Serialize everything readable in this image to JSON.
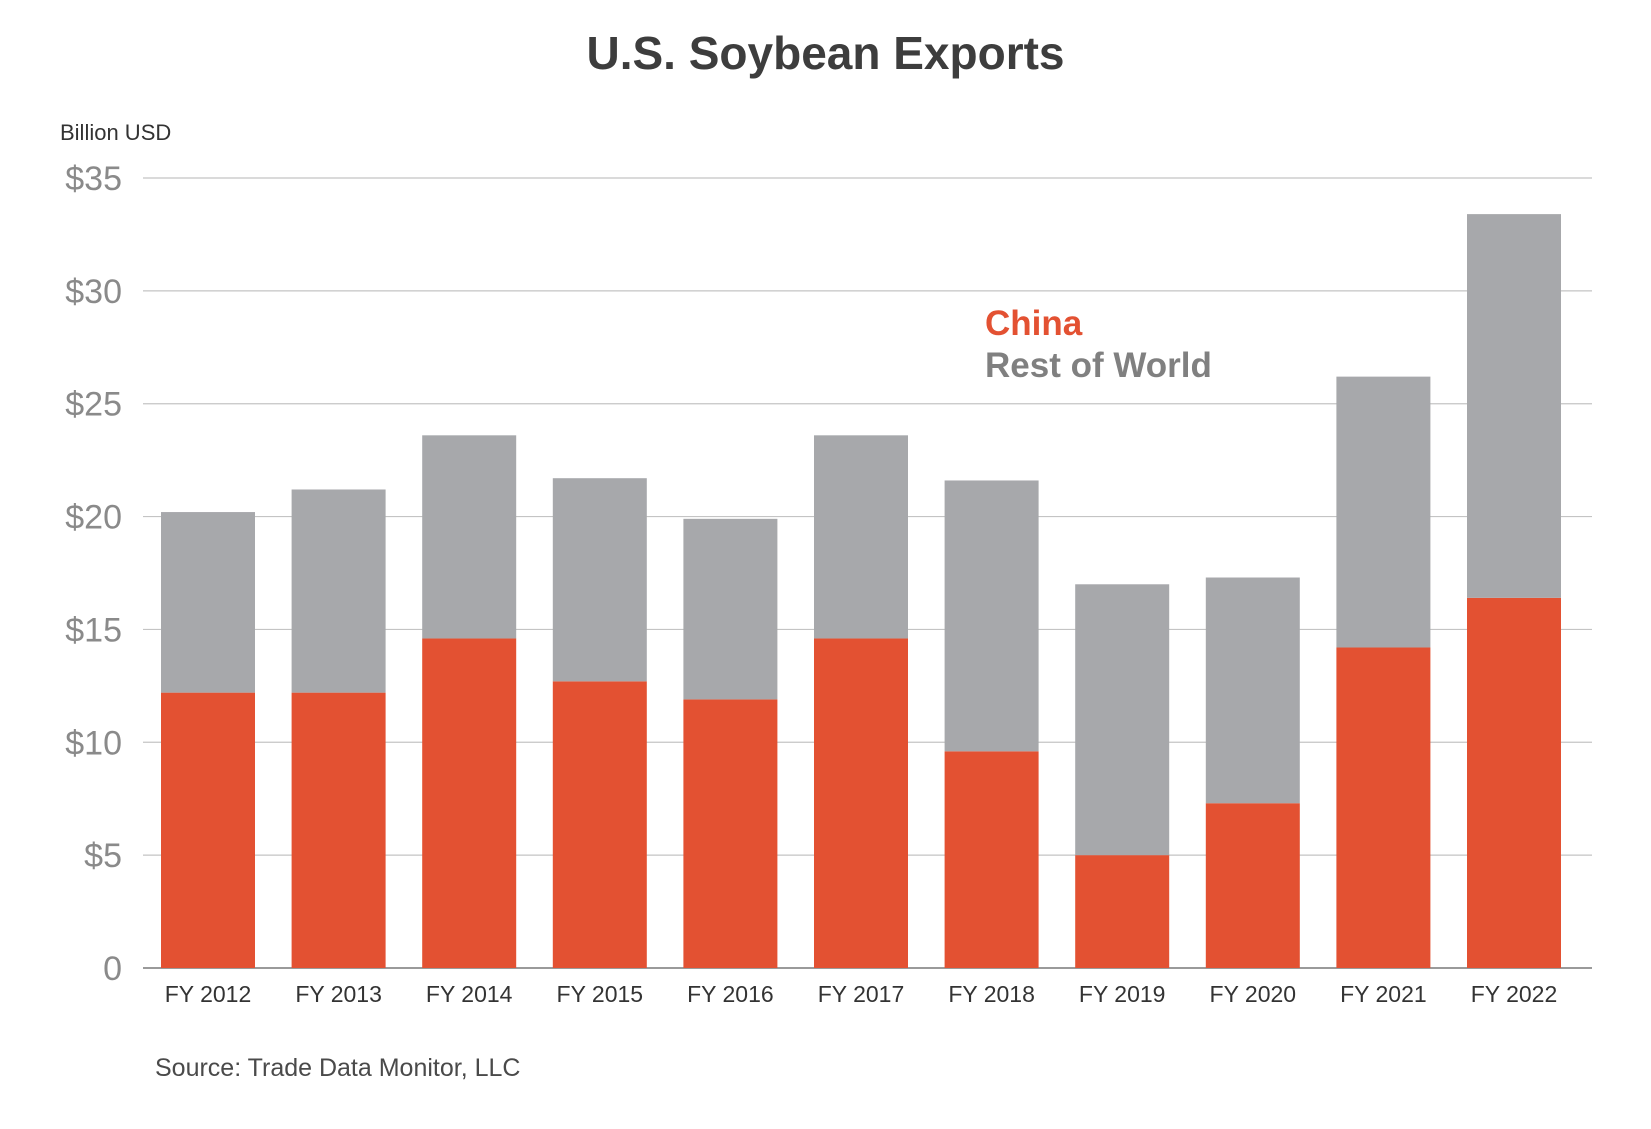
{
  "chart_data": {
    "type": "bar",
    "stacked": true,
    "title": "U.S. Soybean Exports",
    "ylabel": "Billion USD",
    "xlabel": "",
    "ylim": [
      0,
      35
    ],
    "yticks": [
      0,
      5,
      10,
      15,
      20,
      25,
      30,
      35
    ],
    "ytick_labels": [
      "0",
      "$5",
      "$10",
      "$15",
      "$20",
      "$25",
      "$30",
      "$35"
    ],
    "grid": true,
    "legend_position": "top-right",
    "categories": [
      "FY 2012",
      "FY 2013",
      "FY 2014",
      "FY 2015",
      "FY 2016",
      "FY 2017",
      "FY 2018",
      "FY 2019",
      "FY 2020",
      "FY 2021",
      "FY 2022"
    ],
    "series": [
      {
        "name": "China",
        "color": "#e35132",
        "values": [
          12.2,
          12.2,
          14.6,
          12.7,
          11.9,
          14.6,
          9.6,
          5.0,
          7.3,
          14.2,
          16.4
        ]
      },
      {
        "name": "Rest of World",
        "color": "#a7a8ab",
        "values": [
          8.0,
          9.0,
          9.0,
          9.0,
          8.0,
          9.0,
          12.0,
          12.0,
          10.0,
          12.0,
          17.0
        ]
      }
    ],
    "source": "Source: Trade Data Monitor, LLC"
  }
}
